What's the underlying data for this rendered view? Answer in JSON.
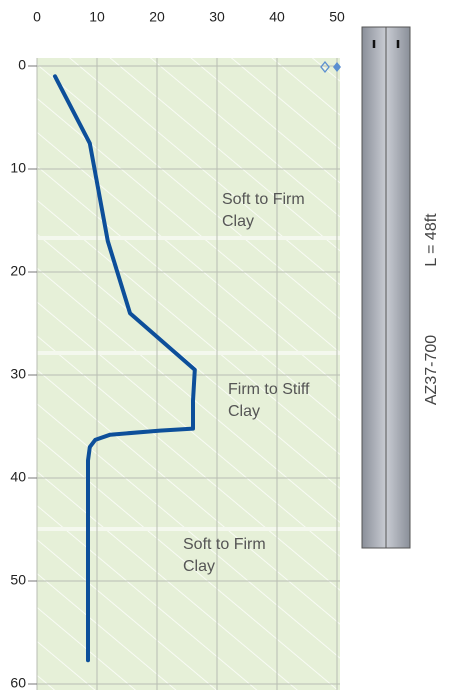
{
  "chart_data": {
    "type": "line",
    "xlim": [
      0,
      50
    ],
    "xticks": [
      0,
      10,
      20,
      30,
      40,
      50
    ],
    "ylim": [
      0,
      60
    ],
    "yticks": [
      0,
      10,
      20,
      30,
      40,
      50,
      60
    ],
    "y_inverted": true,
    "x_axis_position": "top",
    "grid": true,
    "series": [
      {
        "color": "#0d4f9a",
        "x": [
          3,
          8.8,
          11.8,
          15.5,
          26.3,
          26,
          26,
          20.5,
          12.2,
          9.7,
          8.8,
          8.5,
          8.5
        ],
        "values": [
          1,
          7.5,
          17,
          24,
          29.5,
          32.5,
          35.2,
          35.4,
          35.8,
          36.3,
          37,
          38.3,
          57.7
        ]
      }
    ],
    "annotations": [
      [
        "Soft to Firm",
        "Clay"
      ],
      [
        "Firm to Stiff",
        "Clay"
      ],
      [
        "Soft to Firm",
        "Clay"
      ]
    ],
    "pile": {
      "section": "AZ37-700",
      "length": "L = 48ft"
    }
  }
}
